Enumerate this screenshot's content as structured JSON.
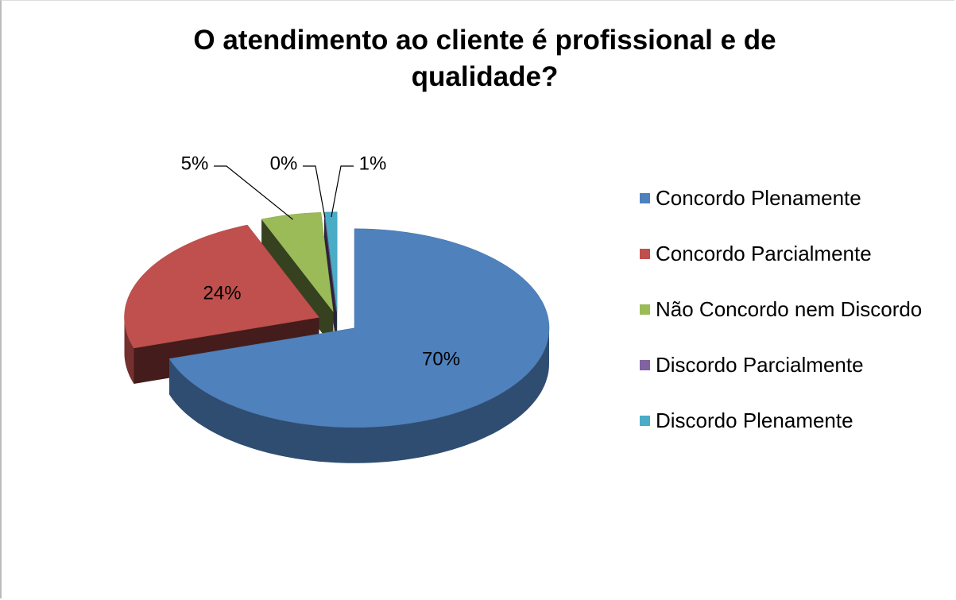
{
  "chart_data": {
    "type": "pie3d",
    "title": "O atendimento ao cliente é profissional e de qualidade?",
    "categories": [
      "Concordo Plenamente",
      "Concordo Parcialmente",
      "Não Concordo nem Discordo",
      "Discordo Parcialmente",
      "Discordo Plenamente"
    ],
    "values": [
      70,
      24,
      5,
      0,
      1
    ],
    "value_labels": [
      "70%",
      "24%",
      "5%",
      "0%",
      "1%"
    ],
    "colors": [
      "#4f81bd",
      "#c0504d",
      "#9bbb59",
      "#8064a2",
      "#4bacc6"
    ],
    "legend": "right"
  }
}
